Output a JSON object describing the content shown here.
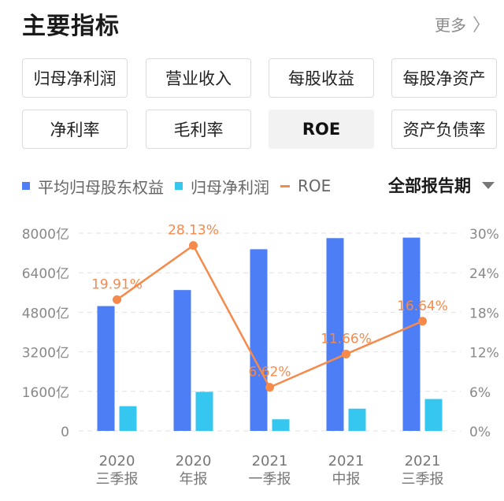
{
  "header": {
    "title": "主要指标",
    "more": "更多",
    "chevron": "〉"
  },
  "tabs": [
    {
      "label": "归母净利润",
      "active": false
    },
    {
      "label": "营业收入",
      "active": false
    },
    {
      "label": "每股收益",
      "active": false
    },
    {
      "label": "每股净资产",
      "active": false
    },
    {
      "label": "净利率",
      "active": false
    },
    {
      "label": "毛利率",
      "active": false
    },
    {
      "label": "ROE",
      "active": true
    },
    {
      "label": "资产负债率",
      "active": false
    }
  ],
  "legend": {
    "items": [
      {
        "label": "平均归母股东权益",
        "color": "#4e7ef5",
        "shape": "square"
      },
      {
        "label": "归母净利润",
        "color": "#36c7f0",
        "shape": "square"
      },
      {
        "label": "ROE",
        "color": "#f58a4b",
        "shape": "line"
      }
    ],
    "period_label": "全部报告期"
  },
  "chart_data": {
    "type": "bar",
    "categories": [
      [
        "2020",
        "三季报"
      ],
      [
        "2020",
        "年报"
      ],
      [
        "2021",
        "一季报"
      ],
      [
        "2021",
        "中报"
      ],
      [
        "2021",
        "三季报"
      ]
    ],
    "series": [
      {
        "name": "平均归母股东权益",
        "axis": "left",
        "values": [
          5050,
          5700,
          7350,
          7800,
          7820
        ]
      },
      {
        "name": "归母净利润",
        "axis": "left",
        "values": [
          1000,
          1580,
          470,
          900,
          1290
        ]
      },
      {
        "name": "ROE",
        "axis": "right",
        "kind": "line",
        "values": [
          19.91,
          28.13,
          6.62,
          11.66,
          16.64
        ],
        "labels": [
          "19.91%",
          "28.13%",
          "6.62%",
          "11.66%",
          "16.64%"
        ]
      }
    ],
    "y_left": {
      "ticks": [
        "0",
        "1600亿",
        "3200亿",
        "4800亿",
        "6400亿",
        "8000亿"
      ],
      "ylim": [
        0,
        8000
      ]
    },
    "y_right": {
      "ticks": [
        "0%",
        "6%",
        "12%",
        "18%",
        "24%",
        "30%"
      ],
      "ylim": [
        0,
        30
      ]
    },
    "grid": "dashed"
  }
}
